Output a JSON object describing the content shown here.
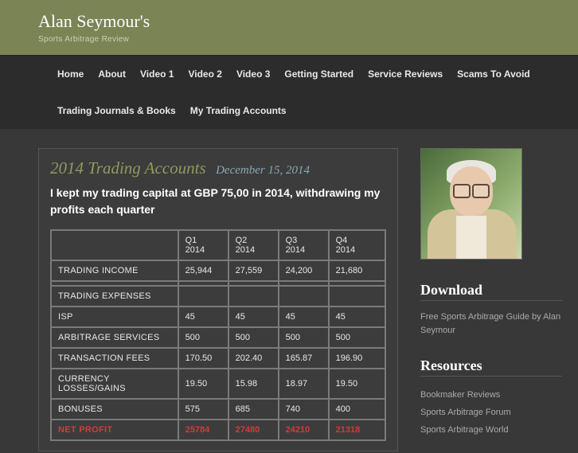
{
  "site": {
    "title": "Alan Seymour's",
    "tagline": "Sports Arbitrage Review"
  },
  "nav": [
    "Home",
    "About",
    "Video 1",
    "Video 2",
    "Video 3",
    "Getting Started",
    "Service Reviews",
    "Scams To Avoid",
    "Trading Journals & Books",
    "My Trading Accounts"
  ],
  "post": {
    "title": "2014 Trading Accounts",
    "date": "December 15, 2014",
    "intro": "I kept my trading capital at  GBP 75,00 in 2014, withdrawing my profits each quarter"
  },
  "table": {
    "columns": [
      "",
      "Q1 2014",
      "Q2 2014",
      "Q3 2014",
      "Q4 2014"
    ],
    "rows": [
      {
        "label": "TRADING INCOME",
        "cells": [
          "25,944",
          "27,559",
          "24,200",
          "21,680"
        ]
      },
      {
        "spacer": true
      },
      {
        "label": "TRADING EXPENSES",
        "cells": [
          "",
          "",
          "",
          ""
        ]
      },
      {
        "label": "ISP",
        "cells": [
          "45",
          "45",
          "45",
          "45"
        ]
      },
      {
        "label": "ARBITRAGE SERVICES",
        "cells": [
          "500",
          "500",
          "500",
          "500"
        ]
      },
      {
        "label": "TRANSACTION FEES",
        "cells": [
          "170.50",
          "202.40",
          "165.87",
          "196.90"
        ]
      },
      {
        "label": "CURRENCY LOSSES/GAINS",
        "cells": [
          "19.50",
          "15.98",
          "18.97",
          "19.50"
        ]
      },
      {
        "label": "BONUSES",
        "cells": [
          "575",
          "685",
          "740",
          "400"
        ]
      },
      {
        "label": "NET PROFIT",
        "cells": [
          "25784",
          "27480",
          "24210",
          "21318"
        ],
        "netprofit": true
      }
    ],
    "col_widths": [
      "38%",
      "15%",
      "15%",
      "15%",
      "17%"
    ],
    "border_color": "#7a7a7a",
    "text_color": "#e8e8e8",
    "netprofit_color": "#d43a3a"
  },
  "sidebar": {
    "download": {
      "heading": "Download",
      "text": "Free Sports Arbitrage Guide by Alan Seymour"
    },
    "resources": {
      "heading": "Resources",
      "items": [
        "Bookmaker Reviews",
        "Sports Arbitrage Forum",
        "Sports Arbitrage World"
      ]
    }
  }
}
